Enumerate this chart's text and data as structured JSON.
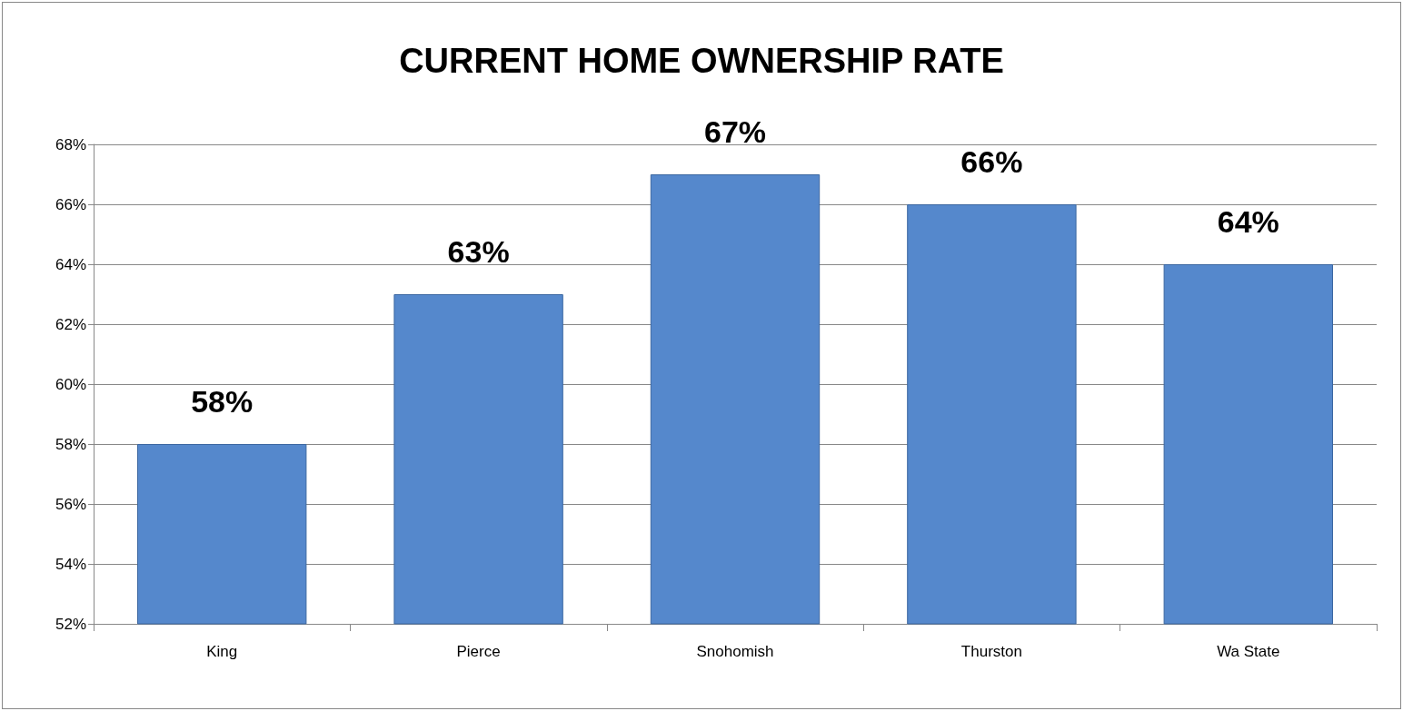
{
  "chart_data": {
    "type": "bar",
    "title": "CURRENT HOME OWNERSHIP RATE",
    "categories": [
      "King",
      "Pierce",
      "Snohomish",
      "Thurston",
      "Wa State"
    ],
    "values": [
      58,
      63,
      67,
      66,
      64
    ],
    "value_labels": [
      "58%",
      "63%",
      "67%",
      "66%",
      "64%"
    ],
    "color": "#5588cc",
    "ylim": [
      52,
      68
    ],
    "yticks": [
      {
        "value": 52,
        "label": "52%"
      },
      {
        "value": 54,
        "label": "54%"
      },
      {
        "value": 56,
        "label": "56%"
      },
      {
        "value": 58,
        "label": "58%"
      },
      {
        "value": 60,
        "label": "60%"
      },
      {
        "value": 62,
        "label": "62%"
      },
      {
        "value": 64,
        "label": "64%"
      },
      {
        "value": 66,
        "label": "66%"
      },
      {
        "value": 68,
        "label": "68%"
      }
    ],
    "grid": "y"
  }
}
